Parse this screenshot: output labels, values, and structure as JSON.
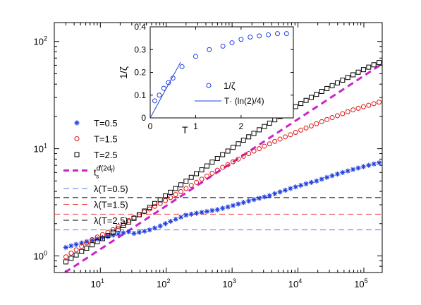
{
  "chart_data": [
    {
      "type": "scatter",
      "title": "",
      "xlabel": "",
      "ylabel": "",
      "xscale": "log",
      "yscale": "log",
      "xlim": [
        2,
        190000
      ],
      "ylim": [
        0.7,
        150
      ],
      "x_ticks": [
        {
          "v": 10,
          "base": "10",
          "exp": "1"
        },
        {
          "v": 100,
          "base": "10",
          "exp": "2"
        },
        {
          "v": 1000,
          "base": "10",
          "exp": "3"
        },
        {
          "v": 10000,
          "base": "10",
          "exp": "4"
        },
        {
          "v": 100000,
          "base": "10",
          "exp": "5"
        }
      ],
      "y_ticks": [
        {
          "v": 1,
          "base": "10",
          "exp": "0"
        },
        {
          "v": 10,
          "base": "10",
          "exp": "1"
        },
        {
          "v": 100,
          "base": "10",
          "exp": "2"
        }
      ],
      "x": [
        3,
        3.6,
        4.3,
        5.2,
        6.2,
        7.5,
        9,
        10.8,
        13,
        15.6,
        18.7,
        22.4,
        27,
        32.4,
        38.9,
        46.7,
        56,
        67,
        81,
        97,
        116,
        139,
        167,
        200,
        240,
        288,
        346,
        415,
        498,
        598,
        718,
        862,
        1034,
        1241,
        1489,
        1787,
        2144,
        2573,
        3088,
        3705,
        4446,
        5335,
        6402,
        7683,
        9220,
        11064,
        13277,
        15932,
        19118,
        22942,
        27530,
        33036,
        39643,
        47572,
        57086,
        68503,
        82204,
        98645,
        118374,
        142049,
        170459
      ],
      "series": [
        {
          "name": "T=0.5",
          "marker": "star",
          "color": "#1f3fe0",
          "y": [
            1.2,
            1.24,
            1.28,
            1.32,
            1.36,
            1.4,
            1.44,
            1.48,
            1.52,
            1.56,
            1.6,
            1.64,
            1.68,
            1.62,
            1.66,
            1.7,
            1.75,
            1.82,
            1.9,
            2.0,
            2.1,
            2.2,
            2.3,
            2.4,
            2.45,
            2.5,
            2.55,
            2.6,
            2.65,
            2.7,
            2.78,
            2.86,
            2.95,
            3.05,
            3.15,
            3.25,
            3.35,
            3.45,
            3.55,
            3.65,
            3.8,
            3.95,
            4.1,
            4.25,
            4.4,
            4.55,
            4.7,
            4.85,
            5.0,
            5.2,
            5.4,
            5.6,
            5.8,
            6.0,
            6.2,
            6.4,
            6.6,
            6.8,
            7.0,
            7.2,
            7.4
          ]
        },
        {
          "name": "T=1.5",
          "marker": "circle",
          "color": "#e01010",
          "y": [
            0.98,
            1.06,
            1.14,
            1.23,
            1.32,
            1.42,
            1.5,
            1.58,
            1.66,
            1.76,
            1.88,
            2.0,
            2.14,
            2.28,
            2.42,
            2.58,
            2.74,
            2.9,
            3.08,
            3.28,
            3.5,
            3.73,
            3.98,
            4.25,
            4.55,
            4.85,
            5.2,
            5.55,
            5.9,
            6.3,
            6.7,
            7.1,
            7.55,
            8.0,
            8.5,
            9.0,
            9.5,
            10.0,
            10.55,
            11.1,
            11.7,
            12.3,
            12.9,
            13.5,
            14.2,
            14.9,
            15.6,
            16.3,
            17.1,
            17.9,
            18.7,
            19.5,
            20.3,
            21.2,
            22.1,
            23.0,
            23.8,
            24.6,
            25.4,
            26.3,
            27.2
          ]
        },
        {
          "name": "T=2.5",
          "marker": "square",
          "color": "#000000",
          "y": [
            0.88,
            0.95,
            1.02,
            1.1,
            1.18,
            1.27,
            1.36,
            1.45,
            1.55,
            1.66,
            1.78,
            1.92,
            2.07,
            2.24,
            2.42,
            2.62,
            2.84,
            3.08,
            3.34,
            3.62,
            3.92,
            4.25,
            4.6,
            4.98,
            5.4,
            5.85,
            6.35,
            6.9,
            7.5,
            8.1,
            8.8,
            9.5,
            10.3,
            11.1,
            12.0,
            12.9,
            13.9,
            15.0,
            16.1,
            17.3,
            18.6,
            20.0,
            21.5,
            23.1,
            24.7,
            26.4,
            28.2,
            30.1,
            32.1,
            34.2,
            36.4,
            38.7,
            41.1,
            43.6,
            46.2,
            48.9,
            51.7,
            54.6,
            57.6,
            60.6,
            63.6
          ]
        }
      ],
      "reference_lines": [
        {
          "name_base": "t",
          "name_sub": "s",
          "name_sup_base": "d",
          "name_sup_tail": "/(2d",
          "name_sup_tail_sub": "f",
          "name_sup_close": ")",
          "style": "thick-dashed",
          "color": "#cc22cc",
          "x": [
            2.9,
            190000
          ],
          "y": [
            0.7,
            62
          ]
        },
        {
          "name": "λ(T=0.5)",
          "style": "dashed",
          "color": "#5577ee",
          "y": 1.75
        },
        {
          "name": "λ(T=1.5)",
          "style": "dashed",
          "color": "#ee4444",
          "y": 2.45
        },
        {
          "name": "λ(T=2.5)",
          "style": "dashed",
          "color": "#000000",
          "y": 3.5
        }
      ],
      "grid": false,
      "legend_position": "left"
    },
    {
      "type": "scatter",
      "role": "inset",
      "title": "",
      "xlabel": "T",
      "ylabel": "1/ζ",
      "xlim": [
        0,
        3.15
      ],
      "ylim": [
        0,
        0.4
      ],
      "x_ticks": [
        "0",
        "1",
        "2"
      ],
      "x_tick_values": [
        0,
        1,
        2
      ],
      "y_ticks": [
        "0",
        "0.1",
        "0.2",
        "0.3",
        "0.4"
      ],
      "y_tick_values": [
        0,
        0.1,
        0.2,
        0.3,
        0.4
      ],
      "series": [
        {
          "name": "1/ζ",
          "marker": "circle",
          "color": "#1f3fe0",
          "x": [
            0.1,
            0.2,
            0.3,
            0.4,
            0.5,
            0.7,
            1.0,
            1.3,
            1.6,
            1.8,
            2.0,
            2.2,
            2.4,
            2.6,
            2.8,
            3.0
          ],
          "y": [
            0.075,
            0.1,
            0.13,
            0.155,
            0.175,
            0.225,
            0.27,
            0.3,
            0.315,
            0.33,
            0.345,
            0.355,
            0.36,
            0.365,
            0.37,
            0.37
          ]
        },
        {
          "name": "T· (ln(2)/4)",
          "type": "line",
          "color": "#1f3fe0",
          "x": [
            0,
            0.67
          ],
          "y": [
            0,
            0.245
          ]
        }
      ]
    }
  ]
}
